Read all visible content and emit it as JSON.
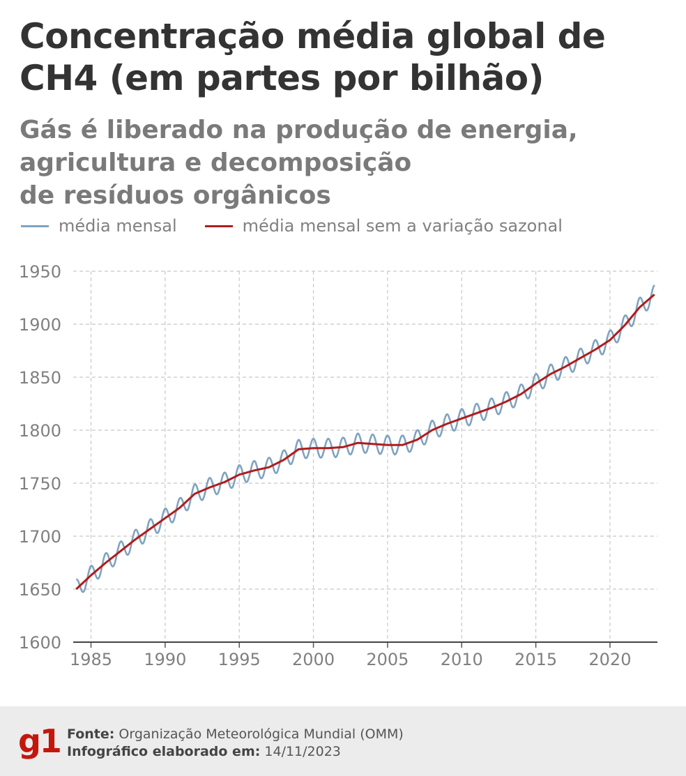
{
  "title": "Concentração média global de CH4 (em partes por bilhão)",
  "subtitle": "Gás é liberado na produção de energia,\nagricultura e decomposição\nde resíduos orgânicos",
  "legend": [
    {
      "label": "média mensal",
      "color": "#7fa3c0"
    },
    {
      "label": "média mensal sem a variação sazonal",
      "color": "#b01c1c"
    }
  ],
  "chart_data": {
    "type": "line",
    "xlim": [
      1983.8,
      2023.2
    ],
    "ylim": [
      1600,
      1950
    ],
    "xticks": [
      1985,
      1990,
      1995,
      2000,
      2005,
      2010,
      2015,
      2020
    ],
    "yticks": [
      1600,
      1650,
      1700,
      1750,
      1800,
      1850,
      1900,
      1950
    ],
    "grid": true,
    "series": [
      {
        "name": "média mensal sem a variação sazonal",
        "color": "#b01c1c",
        "x": [
          1984,
          1985,
          1986,
          1987,
          1988,
          1989,
          1990,
          1991,
          1992,
          1993,
          1994,
          1995,
          1996,
          1997,
          1998,
          1999,
          2000,
          2001,
          2002,
          2003,
          2004,
          2005,
          2006,
          2007,
          2008,
          2009,
          2010,
          2011,
          2012,
          2013,
          2014,
          2015,
          2016,
          2017,
          2018,
          2019,
          2020,
          2021,
          2022,
          2023
        ],
        "y": [
          1650,
          1663,
          1675,
          1686,
          1697,
          1707,
          1717,
          1727,
          1740,
          1746,
          1751,
          1758,
          1762,
          1765,
          1772,
          1782,
          1783,
          1783,
          1784,
          1788,
          1787,
          1786,
          1786,
          1791,
          1800,
          1806,
          1811,
          1816,
          1821,
          1827,
          1834,
          1844,
          1853,
          1860,
          1868,
          1876,
          1885,
          1899,
          1916,
          1928
        ]
      },
      {
        "name": "média mensal",
        "color": "#7fa3c0",
        "seasonal_amplitude": 9
      }
    ]
  },
  "footer": {
    "logo": "g1",
    "source_label": "Fonte:",
    "source_value": "Organização Meteorológica Mundial (OMM)",
    "date_label": "Infográfico elaborado em:",
    "date_value": "14/11/2023"
  }
}
